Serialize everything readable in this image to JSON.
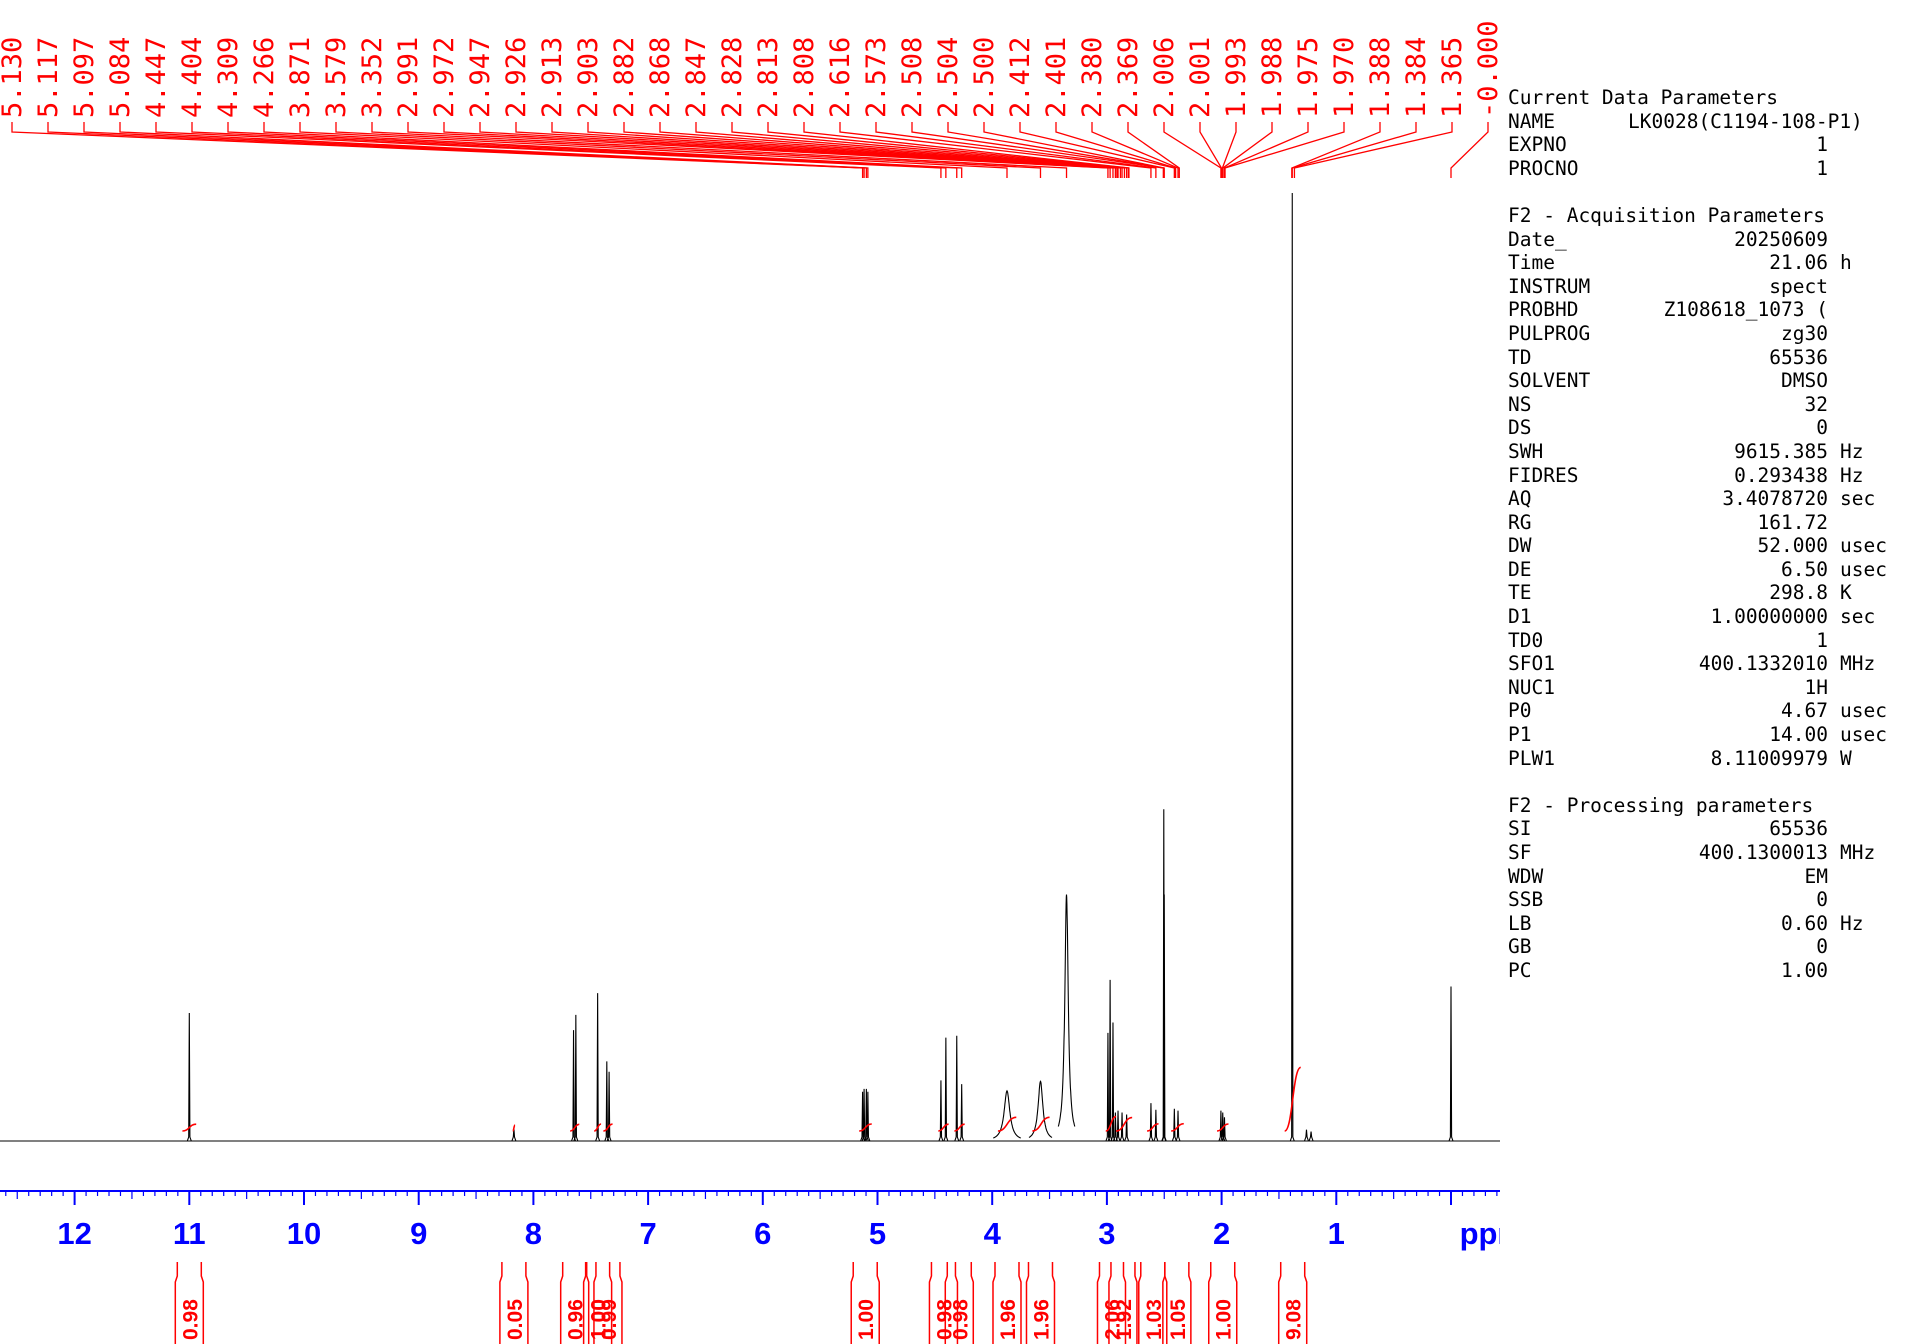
{
  "chart_data": {
    "type": "line",
    "xlabel": "ppm",
    "x_ticks": [
      12,
      11,
      10,
      9,
      8,
      7,
      6,
      5,
      4,
      3,
      2,
      1
    ],
    "x_reversed": true,
    "colors": {
      "spectrum": "#000000",
      "peak_labels": "#ff0000",
      "integrals": "#ff0000",
      "axis": "#0000ff"
    },
    "peak_labels": [
      "5.130",
      "5.117",
      "5.097",
      "5.084",
      "4.447",
      "4.404",
      "4.309",
      "4.266",
      "3.871",
      "3.579",
      "3.352",
      "2.991",
      "2.972",
      "2.947",
      "2.926",
      "2.913",
      "2.903",
      "2.882",
      "2.868",
      "2.847",
      "2.828",
      "2.813",
      "2.808",
      "2.616",
      "2.573",
      "2.508",
      "2.504",
      "2.500",
      "2.412",
      "2.401",
      "2.380",
      "2.369",
      "2.006",
      "2.001",
      "1.993",
      "1.988",
      "1.975",
      "1.970",
      "1.388",
      "1.384",
      "1.365",
      "-0.000"
    ],
    "peaks": [
      {
        "ppm": 11.0,
        "height": 0.135
      },
      {
        "ppm": 8.17,
        "height": 0.013
      },
      {
        "ppm": 7.65,
        "height": 0.117
      },
      {
        "ppm": 7.63,
        "height": 0.133
      },
      {
        "ppm": 7.44,
        "height": 0.156
      },
      {
        "ppm": 7.36,
        "height": 0.084
      },
      {
        "ppm": 7.34,
        "height": 0.073
      },
      {
        "ppm": 5.13,
        "height": 0.052
      },
      {
        "ppm": 5.117,
        "height": 0.055
      },
      {
        "ppm": 5.097,
        "height": 0.055
      },
      {
        "ppm": 5.084,
        "height": 0.052
      },
      {
        "ppm": 4.447,
        "height": 0.064
      },
      {
        "ppm": 4.404,
        "height": 0.109
      },
      {
        "ppm": 4.309,
        "height": 0.111
      },
      {
        "ppm": 4.266,
        "height": 0.06
      },
      {
        "ppm": 3.871,
        "height": 0.053,
        "width": 0.03
      },
      {
        "ppm": 3.579,
        "height": 0.063,
        "width": 0.025
      },
      {
        "ppm": 3.352,
        "height": 0.26,
        "width": 0.018
      },
      {
        "ppm": 2.991,
        "height": 0.114
      },
      {
        "ppm": 2.972,
        "height": 0.17
      },
      {
        "ppm": 2.947,
        "height": 0.125
      },
      {
        "ppm": 2.926,
        "height": 0.03
      },
      {
        "ppm": 2.903,
        "height": 0.032
      },
      {
        "ppm": 2.868,
        "height": 0.03
      },
      {
        "ppm": 2.828,
        "height": 0.028
      },
      {
        "ppm": 2.616,
        "height": 0.04
      },
      {
        "ppm": 2.573,
        "height": 0.033
      },
      {
        "ppm": 2.504,
        "height": 0.35
      },
      {
        "ppm": 2.5,
        "height": 0.26
      },
      {
        "ppm": 2.412,
        "height": 0.034
      },
      {
        "ppm": 2.38,
        "height": 0.032
      },
      {
        "ppm": 2.006,
        "height": 0.032
      },
      {
        "ppm": 1.99,
        "height": 0.03
      },
      {
        "ppm": 1.975,
        "height": 0.025
      },
      {
        "ppm": 1.384,
        "height": 1.0
      },
      {
        "ppm": 1.26,
        "height": 0.012
      },
      {
        "ppm": 1.22,
        "height": 0.01
      },
      {
        "ppm": 0.0,
        "height": 0.163
      }
    ],
    "integrals": [
      {
        "center": 11.0,
        "from": 11.06,
        "to": 10.94,
        "value": "0.98"
      },
      {
        "center": 8.17,
        "from": 8.18,
        "to": 8.16,
        "value": "0.05"
      },
      {
        "center": 7.64,
        "from": 7.68,
        "to": 7.6,
        "value": "0.96"
      },
      {
        "center": 7.44,
        "from": 7.47,
        "to": 7.41,
        "value": "1.00"
      },
      {
        "center": 7.35,
        "from": 7.39,
        "to": 7.31,
        "value": "0.99"
      },
      {
        "center": 5.107,
        "from": 5.16,
        "to": 5.05,
        "value": "1.00"
      },
      {
        "center": 4.425,
        "from": 4.47,
        "to": 4.38,
        "value": "0.98"
      },
      {
        "center": 4.287,
        "from": 4.33,
        "to": 4.24,
        "value": "0.98"
      },
      {
        "center": 3.871,
        "from": 3.95,
        "to": 3.79,
        "value": "1.96"
      },
      {
        "center": 3.579,
        "from": 3.65,
        "to": 3.5,
        "value": "1.96"
      },
      {
        "center": 2.96,
        "from": 3.01,
        "to": 2.92,
        "value": "2.06"
      },
      {
        "center": 2.86,
        "from": 2.92,
        "to": 2.78,
        "value": "1.92"
      },
      {
        "center": 2.6,
        "from": 2.65,
        "to": 2.55,
        "value": "1.03"
      },
      {
        "center": 2.39,
        "from": 2.44,
        "to": 2.33,
        "value": "1.05"
      },
      {
        "center": 1.99,
        "from": 2.04,
        "to": 1.94,
        "value": "1.00"
      },
      {
        "center": 1.38,
        "from": 1.45,
        "to": 1.31,
        "value": "9.08"
      }
    ]
  },
  "params": {
    "current_heading": "Current Data Parameters",
    "current_rows": [
      {
        "key": "NAME",
        "value": "LK0028(C1194-108-P1)",
        "unit": ""
      },
      {
        "key": "EXPNO",
        "value": "1",
        "unit": ""
      },
      {
        "key": "PROCNO",
        "value": "1",
        "unit": ""
      }
    ],
    "acq_heading": "F2 - Acquisition Parameters",
    "acq_rows": [
      {
        "key": "Date_",
        "value": "20250609",
        "unit": ""
      },
      {
        "key": "Time",
        "value": "21.06",
        "unit": "h"
      },
      {
        "key": "INSTRUM",
        "value": "spect",
        "unit": ""
      },
      {
        "key": "PROBHD",
        "value": "Z108618_1073 (",
        "unit": ""
      },
      {
        "key": "PULPROG",
        "value": "zg30",
        "unit": ""
      },
      {
        "key": "TD",
        "value": "65536",
        "unit": ""
      },
      {
        "key": "SOLVENT",
        "value": "DMSO",
        "unit": ""
      },
      {
        "key": "NS",
        "value": "32",
        "unit": ""
      },
      {
        "key": "DS",
        "value": "0",
        "unit": ""
      },
      {
        "key": "SWH",
        "value": "9615.385",
        "unit": "Hz"
      },
      {
        "key": "FIDRES",
        "value": "0.293438",
        "unit": "Hz"
      },
      {
        "key": "AQ",
        "value": "3.4078720",
        "unit": "sec"
      },
      {
        "key": "RG",
        "value": "161.72",
        "unit": ""
      },
      {
        "key": "DW",
        "value": "52.000",
        "unit": "usec"
      },
      {
        "key": "DE",
        "value": "6.50",
        "unit": "usec"
      },
      {
        "key": "TE",
        "value": "298.8",
        "unit": "K"
      },
      {
        "key": "D1",
        "value": "1.00000000",
        "unit": "sec"
      },
      {
        "key": "TD0",
        "value": "1",
        "unit": ""
      },
      {
        "key": "SFO1",
        "value": "400.1332010",
        "unit": "MHz"
      },
      {
        "key": "NUC1",
        "value": "1H",
        "unit": ""
      },
      {
        "key": "P0",
        "value": "4.67",
        "unit": "usec"
      },
      {
        "key": "P1",
        "value": "14.00",
        "unit": "usec"
      },
      {
        "key": "PLW1",
        "value": "8.11009979",
        "unit": "W"
      }
    ],
    "proc_heading": "F2 - Processing parameters",
    "proc_rows": [
      {
        "key": "SI",
        "value": "65536",
        "unit": ""
      },
      {
        "key": "SF",
        "value": "400.1300013",
        "unit": "MHz"
      },
      {
        "key": "WDW",
        "value": "EM",
        "unit": ""
      },
      {
        "key": "SSB",
        "value": "0",
        "unit": ""
      },
      {
        "key": "LB",
        "value": "0.60",
        "unit": "Hz"
      },
      {
        "key": "GB",
        "value": "0",
        "unit": ""
      },
      {
        "key": "PC",
        "value": "1.00",
        "unit": ""
      }
    ]
  }
}
